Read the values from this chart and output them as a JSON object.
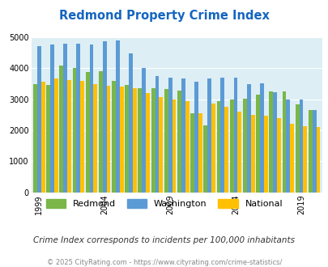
{
  "title": "Redmond Property Crime Index",
  "years": [
    1999,
    2000,
    2001,
    2002,
    2003,
    2004,
    2005,
    2006,
    2007,
    2008,
    2009,
    2010,
    2011,
    2012,
    2013,
    2014,
    2015,
    2016,
    2017,
    2018,
    2019,
    2020
  ],
  "redmond": [
    3480,
    3460,
    4080,
    4010,
    3880,
    3900,
    3600,
    3460,
    3370,
    3350,
    3330,
    3280,
    2550,
    2160,
    2950,
    3000,
    3020,
    3150,
    3250,
    3250,
    2850,
    2660
  ],
  "washington": [
    4720,
    4780,
    4790,
    4790,
    4770,
    4870,
    4890,
    4480,
    4020,
    3760,
    3700,
    3680,
    3560,
    3660,
    3700,
    3700,
    3490,
    3510,
    3230,
    3000,
    2990,
    2650
  ],
  "national": [
    3570,
    3660,
    3620,
    3600,
    3490,
    3450,
    3410,
    3360,
    3190,
    3060,
    2990,
    2940,
    2550,
    2870,
    2760,
    2600,
    2490,
    2460,
    2380,
    2200,
    2120,
    2110
  ],
  "redmond_color": "#7ab648",
  "washington_color": "#5b9bd5",
  "national_color": "#ffc000",
  "background_color": "#ddeef5",
  "title_color": "#1565c0",
  "ylim": [
    0,
    5000
  ],
  "yticks": [
    0,
    1000,
    2000,
    3000,
    4000,
    5000
  ],
  "xlabel_ticks": [
    1999,
    2004,
    2009,
    2014,
    2019
  ],
  "subtitle": "Crime Index corresponds to incidents per 100,000 inhabitants",
  "footer": "© 2025 CityRating.com - https://www.cityrating.com/crime-statistics/",
  "legend_labels": [
    "Redmond",
    "Washington",
    "National"
  ]
}
